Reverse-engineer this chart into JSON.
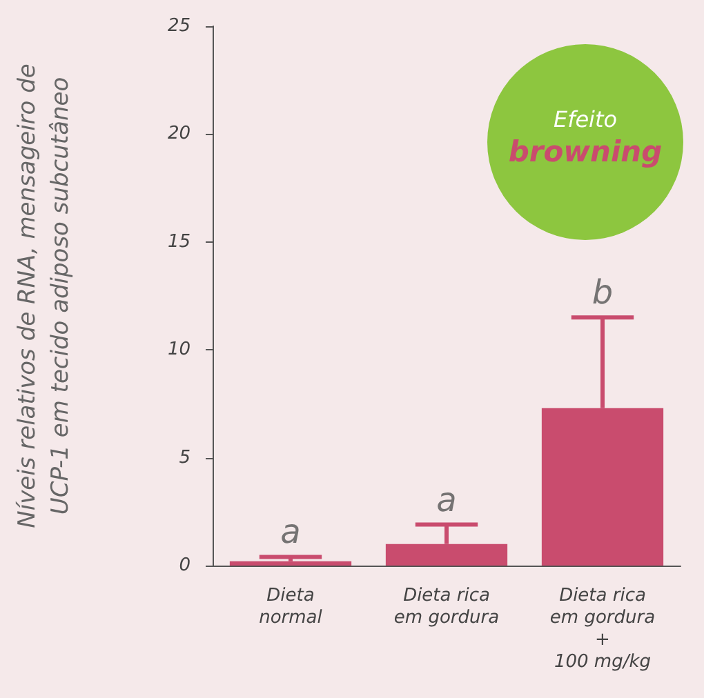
{
  "chart_data": {
    "type": "bar",
    "ylabel": "Níveis relativos de RNA, mensageiro de\nUCP-1 em tecido adiposo subcutâneo",
    "categories": [
      "Dieta\nnormal",
      "Dieta rica\nem gordura",
      "Dieta rica\nem gordura\n+\n100 mg/kg"
    ],
    "values": [
      0.2,
      1.0,
      7.3
    ],
    "color": "#c94c6e",
    "errors": [
      [
        0.2,
        0.4
      ],
      [
        1.0,
        1.9
      ],
      [
        7.3,
        11.5
      ]
    ],
    "ylim": [
      0,
      25
    ],
    "yticks": [
      0,
      5,
      10,
      15,
      20,
      25
    ],
    "annotations": [
      "Efeito",
      "browning",
      {
        "text": "a",
        "x": "Dieta\nnormal",
        "y": 0.4
      },
      {
        "text": "a",
        "x": "Dieta rica\nem gordura",
        "y": 1.9
      },
      {
        "text": "b",
        "x": "Dieta rica\nem gordura\n+\n100 mg/kg",
        "y": 11.5
      }
    ]
  }
}
